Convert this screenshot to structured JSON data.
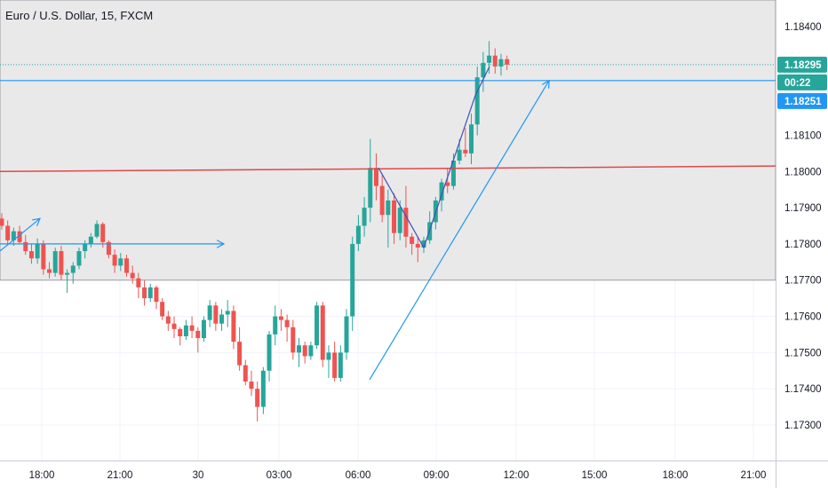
{
  "header": {
    "symbol_title": "Euro / U.S. Dollar, 15, FXCM"
  },
  "colors": {
    "up": "#26a69a",
    "down": "#ef5350",
    "zone": "#e9e9ea",
    "trendline": "#2196f3",
    "resistance": "#e04848",
    "zigzag": "#3f51b5",
    "last_price": "#26a69a",
    "grid": "#f0f3fa",
    "axis_text": "#131722"
  },
  "price_labels": {
    "last_price": "1.18295",
    "countdown": "00:22",
    "line_price": "1.18251"
  },
  "zone": {
    "top": 1.1846,
    "bottom": 1.177
  },
  "levels": {
    "last_price": 1.18295,
    "blue_line": 1.18251,
    "resistance_start": 1.18,
    "resistance_end": 1.18015
  },
  "chart_data": {
    "type": "candlestick",
    "title": "Euro / U.S. Dollar, 15, FXCM",
    "y_ticks": [
      "1.18400",
      "1.18100",
      "1.18000",
      "1.17900",
      "1.17800",
      "1.17700",
      "1.17600",
      "1.17500",
      "1.17400",
      "1.17300"
    ],
    "x_ticks": [
      "18:00",
      "21:00",
      "30",
      "03:00",
      "06:00",
      "09:00",
      "12:00",
      "15:00",
      "18:00",
      "21:00"
    ],
    "ylim": [
      1.1721,
      1.1851
    ],
    "candles": [
      [
        1.1787,
        1.17885,
        1.1784,
        1.1785
      ],
      [
        1.1785,
        1.17865,
        1.178,
        1.1781
      ],
      [
        1.1781,
        1.17845,
        1.17795,
        1.17835
      ],
      [
        1.17835,
        1.1785,
        1.178,
        1.17805
      ],
      [
        1.17805,
        1.17825,
        1.1777,
        1.1778
      ],
      [
        1.1778,
        1.178,
        1.17745,
        1.1776
      ],
      [
        1.1776,
        1.17815,
        1.17745,
        1.178
      ],
      [
        1.178,
        1.1781,
        1.17715,
        1.1773
      ],
      [
        1.1773,
        1.1775,
        1.17705,
        1.1772
      ],
      [
        1.1772,
        1.1779,
        1.1771,
        1.1778
      ],
      [
        1.1778,
        1.17795,
        1.177,
        1.17715
      ],
      [
        1.17715,
        1.1773,
        1.17665,
        1.1772
      ],
      [
        1.1772,
        1.1775,
        1.1769,
        1.1774
      ],
      [
        1.1774,
        1.1779,
        1.1773,
        1.1778
      ],
      [
        1.1778,
        1.1781,
        1.1776,
        1.178
      ],
      [
        1.178,
        1.1783,
        1.1779,
        1.1782
      ],
      [
        1.1782,
        1.17865,
        1.17815,
        1.17855
      ],
      [
        1.17855,
        1.1786,
        1.1779,
        1.17805
      ],
      [
        1.17805,
        1.1781,
        1.1776,
        1.1777
      ],
      [
        1.1777,
        1.17785,
        1.1772,
        1.1774
      ],
      [
        1.1774,
        1.17775,
        1.17725,
        1.1776
      ],
      [
        1.1776,
        1.1777,
        1.1771,
        1.1772
      ],
      [
        1.1772,
        1.1774,
        1.1769,
        1.17705
      ],
      [
        1.17705,
        1.1772,
        1.1765,
        1.1768
      ],
      [
        1.1768,
        1.177,
        1.1763,
        1.1765
      ],
      [
        1.1765,
        1.1769,
        1.1764,
        1.1768
      ],
      [
        1.1768,
        1.17685,
        1.1762,
        1.1764
      ],
      [
        1.1764,
        1.1765,
        1.1759,
        1.176
      ],
      [
        1.176,
        1.17615,
        1.1756,
        1.1758
      ],
      [
        1.1758,
        1.176,
        1.1754,
        1.17565
      ],
      [
        1.17565,
        1.1757,
        1.1752,
        1.17545
      ],
      [
        1.17545,
        1.1759,
        1.17535,
        1.17575
      ],
      [
        1.17575,
        1.176,
        1.1754,
        1.1756
      ],
      [
        1.1756,
        1.1757,
        1.175,
        1.1754
      ],
      [
        1.1754,
        1.176,
        1.1753,
        1.1759
      ],
      [
        1.1759,
        1.17645,
        1.1757,
        1.1763
      ],
      [
        1.1763,
        1.1764,
        1.1756,
        1.1758
      ],
      [
        1.1758,
        1.1762,
        1.1756,
        1.17605
      ],
      [
        1.17605,
        1.17645,
        1.1757,
        1.17615
      ],
      [
        1.17615,
        1.1763,
        1.1751,
        1.1753
      ],
      [
        1.1753,
        1.1757,
        1.1745,
        1.17465
      ],
      [
        1.17465,
        1.1748,
        1.1741,
        1.1742
      ],
      [
        1.1742,
        1.1745,
        1.1738,
        1.174
      ],
      [
        1.174,
        1.1742,
        1.1731,
        1.1735
      ],
      [
        1.1735,
        1.1746,
        1.1733,
        1.1745
      ],
      [
        1.1745,
        1.1756,
        1.1742,
        1.1755
      ],
      [
        1.1755,
        1.1763,
        1.1752,
        1.176
      ],
      [
        1.176,
        1.1762,
        1.1756,
        1.1759
      ],
      [
        1.1759,
        1.17605,
        1.1753,
        1.1757
      ],
      [
        1.1757,
        1.1759,
        1.1748,
        1.175
      ],
      [
        1.175,
        1.1754,
        1.1746,
        1.1752
      ],
      [
        1.1752,
        1.1753,
        1.1747,
        1.1749
      ],
      [
        1.1749,
        1.1753,
        1.1748,
        1.1752
      ],
      [
        1.1752,
        1.1764,
        1.1751,
        1.1763
      ],
      [
        1.1763,
        1.1764,
        1.1746,
        1.1748
      ],
      [
        1.1748,
        1.1752,
        1.1743,
        1.175
      ],
      [
        1.175,
        1.1753,
        1.1742,
        1.1743
      ],
      [
        1.1743,
        1.1752,
        1.1742,
        1.175
      ],
      [
        1.175,
        1.1762,
        1.1748,
        1.176
      ],
      [
        1.176,
        1.1782,
        1.1756,
        1.178
      ],
      [
        1.178,
        1.1788,
        1.1778,
        1.1785
      ],
      [
        1.1785,
        1.1793,
        1.1782,
        1.179
      ],
      [
        1.179,
        1.1809,
        1.1786,
        1.1801
      ],
      [
        1.1801,
        1.1805,
        1.1792,
        1.1796
      ],
      [
        1.1796,
        1.1799,
        1.1786,
        1.1788
      ],
      [
        1.1788,
        1.1795,
        1.1779,
        1.1792
      ],
      [
        1.1792,
        1.1794,
        1.178,
        1.1783
      ],
      [
        1.1783,
        1.1792,
        1.1781,
        1.179
      ],
      [
        1.179,
        1.1796,
        1.1779,
        1.1782
      ],
      [
        1.1782,
        1.1783,
        1.1777,
        1.178
      ],
      [
        1.178,
        1.1782,
        1.1775,
        1.1779
      ],
      [
        1.1779,
        1.1782,
        1.17775,
        1.1781
      ],
      [
        1.1781,
        1.1789,
        1.178,
        1.1786
      ],
      [
        1.1786,
        1.1793,
        1.1784,
        1.1792
      ],
      [
        1.1792,
        1.1798,
        1.1789,
        1.1797
      ],
      [
        1.1797,
        1.1801,
        1.1794,
        1.1796
      ],
      [
        1.1796,
        1.1805,
        1.1795,
        1.1803
      ],
      [
        1.1803,
        1.1809,
        1.1802,
        1.1806
      ],
      [
        1.1806,
        1.1812,
        1.1804,
        1.1805
      ],
      [
        1.1805,
        1.1816,
        1.1802,
        1.1813
      ],
      [
        1.1813,
        1.1829,
        1.181,
        1.1826
      ],
      [
        1.1826,
        1.1833,
        1.1822,
        1.183
      ],
      [
        1.183,
        1.1836,
        1.1827,
        1.1832
      ],
      [
        1.1832,
        1.1834,
        1.1827,
        1.1829
      ],
      [
        1.1829,
        1.18325,
        1.18265,
        1.1831
      ],
      [
        1.1831,
        1.1832,
        1.1828,
        1.18295
      ]
    ]
  }
}
